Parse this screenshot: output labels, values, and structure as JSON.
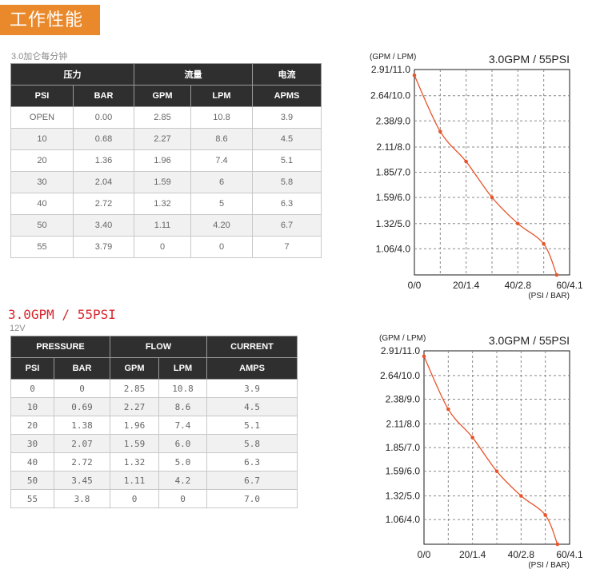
{
  "banner": {
    "title": "工作性能"
  },
  "section1": {
    "subtitle": "3.0加仑每分钟",
    "table": {
      "groups": [
        "压力",
        "流量",
        "电流"
      ],
      "columns": [
        "PSI",
        "BAR",
        "GPM",
        "LPM",
        "APMS"
      ],
      "rows": [
        [
          "OPEN",
          "0.00",
          "2.85",
          "10.8",
          "3.9"
        ],
        [
          "10",
          "0.68",
          "2.27",
          "8.6",
          "4.5"
        ],
        [
          "20",
          "1.36",
          "1.96",
          "7.4",
          "5.1"
        ],
        [
          "30",
          "2.04",
          "1.59",
          "6",
          "5.8"
        ],
        [
          "40",
          "2.72",
          "1.32",
          "5",
          "6.3"
        ],
        [
          "50",
          "3.40",
          "1.11",
          "4.20",
          "6.7"
        ],
        [
          "55",
          "3.79",
          "0",
          "0",
          "7"
        ]
      ]
    }
  },
  "section2": {
    "title": "3.0GPM / 55PSI",
    "subtitle": "12V",
    "table": {
      "groups": [
        "PRESSURE",
        "FLOW",
        "CURRENT"
      ],
      "columns": [
        "PSI",
        "BAR",
        "GPM",
        "LPM",
        "AMPS"
      ],
      "rows": [
        [
          "0",
          "0",
          "2.85",
          "10.8",
          "3.9"
        ],
        [
          "10",
          "0.69",
          "2.27",
          "8.6",
          "4.5"
        ],
        [
          "20",
          "1.38",
          "1.96",
          "7.4",
          "5.1"
        ],
        [
          "30",
          "2.07",
          "1.59",
          "6.0",
          "5.8"
        ],
        [
          "40",
          "2.72",
          "1.32",
          "5.0",
          "6.3"
        ],
        [
          "50",
          "3.45",
          "1.11",
          "4.2",
          "6.7"
        ],
        [
          "55",
          "3.8",
          "0",
          "0",
          "7.0"
        ]
      ]
    }
  },
  "chart_data": [
    {
      "type": "line",
      "title": "3.0GPM / 55PSI",
      "ylabel": "(GPM / LPM)",
      "xlabel": "(PSI / BAR)",
      "x_ticks": [
        "0/0",
        "20/1.4",
        "40/2.8",
        "60/4.1"
      ],
      "y_ticks": [
        "2.91/11.0",
        "2.64/10.0",
        "2.38/9.0",
        "2.11/8.0",
        "1.85/7.0",
        "1.59/6.0",
        "1.32/5.0",
        "1.06/4.0"
      ],
      "xlim": [
        0,
        60
      ],
      "ylim": [
        0.79,
        2.91
      ],
      "grid": true,
      "series": [
        {
          "x": [
            0,
            10,
            20,
            30,
            40,
            50,
            55
          ],
          "y": [
            2.85,
            2.27,
            1.96,
            1.59,
            1.32,
            1.11,
            0
          ],
          "color": "#e8542a"
        }
      ]
    },
    {
      "type": "line",
      "title": "3.0GPM / 55PSI",
      "ylabel": "(GPM / LPM)",
      "xlabel": "(PSI / BAR)",
      "x_ticks": [
        "0/0",
        "20/1.4",
        "40/2.8",
        "60/4.1"
      ],
      "y_ticks": [
        "2.91/11.0",
        "2.64/10.0",
        "2.38/9.0",
        "2.11/8.0",
        "1.85/7.0",
        "1.59/6.0",
        "1.32/5.0",
        "1.06/4.0"
      ],
      "xlim": [
        0,
        60
      ],
      "ylim": [
        0.79,
        2.91
      ],
      "grid": true,
      "series": [
        {
          "x": [
            0,
            10,
            20,
            30,
            40,
            50,
            55
          ],
          "y": [
            2.85,
            2.27,
            1.96,
            1.59,
            1.32,
            1.11,
            0
          ],
          "color": "#e8542a"
        }
      ]
    }
  ]
}
